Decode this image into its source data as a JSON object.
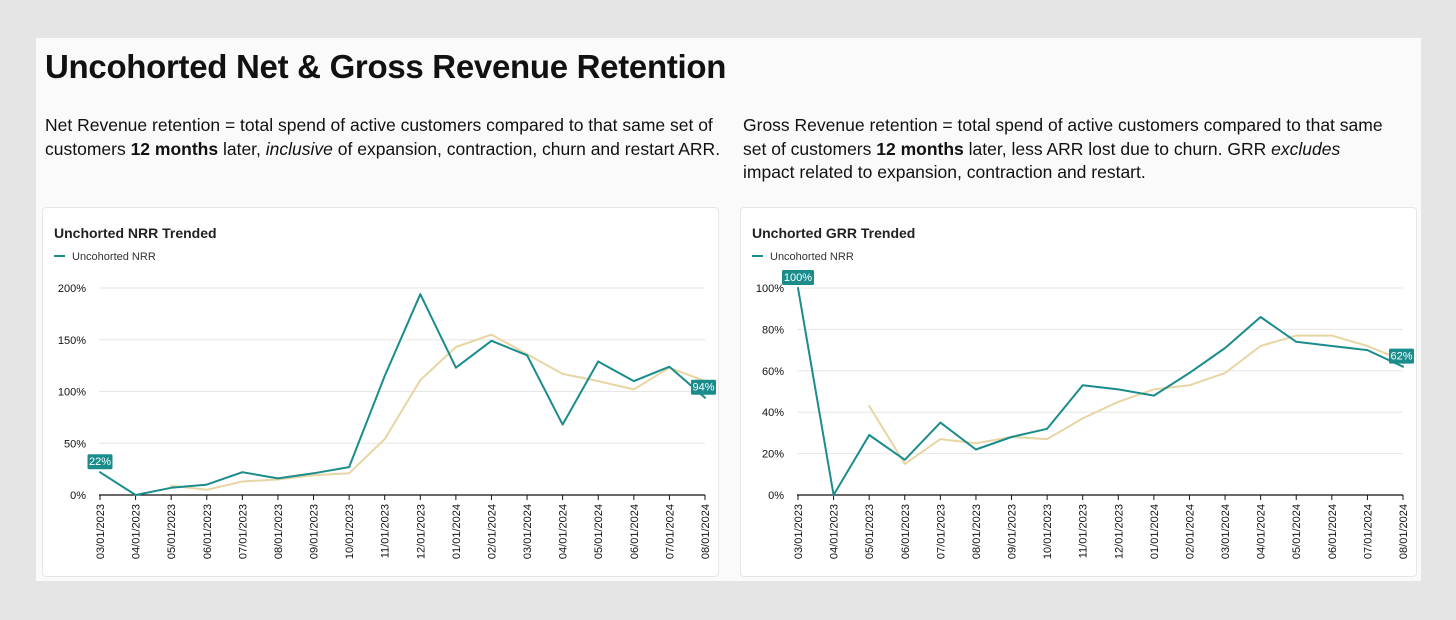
{
  "page": {
    "title": "Uncohorted Net & Gross Revenue Retention",
    "nrr_desc": {
      "p1": "Net Revenue retention = total spend of active customers compared to that same set of customers ",
      "b1": "12 months",
      "p2": " later, ",
      "i1": "inclusive",
      "p3": " of expansion, contraction, churn and restart ARR."
    },
    "grr_desc": {
      "p1": "Gross Revenue retention = total spend of active customers compared to that same set of customers ",
      "b1": "12 months",
      "p2": " later, less ARR lost due to churn. GRR ",
      "i1": "excludes",
      "p3": " impact related to expansion, contraction and restart."
    }
  },
  "colors": {
    "primary": "#1a8c8c",
    "trend": "#e8d5a4",
    "grid": "#e6e6e6",
    "axis": "#111111"
  },
  "chart_data": [
    {
      "type": "line",
      "title": "Unchorted NRR Trended",
      "legend": [
        "Uncohorted NRR"
      ],
      "x": [
        "03/01/2023",
        "04/01/2023",
        "05/01/2023",
        "06/01/2023",
        "07/01/2023",
        "08/01/2023",
        "09/01/2023",
        "10/01/2023",
        "11/01/2023",
        "12/01/2023",
        "01/01/2024",
        "02/01/2024",
        "03/01/2024",
        "04/01/2024",
        "05/01/2024",
        "06/01/2024",
        "07/01/2024",
        "08/01/2024"
      ],
      "ylim": [
        0,
        200
      ],
      "yticks": [
        0,
        50,
        100,
        150,
        200
      ],
      "ytick_labels": [
        "0%",
        "50%",
        "100%",
        "150%",
        "200%"
      ],
      "series": [
        {
          "name": "Uncohorted NRR",
          "values": [
            22,
            0,
            7,
            10,
            22,
            16,
            21,
            27,
            115,
            194,
            123,
            149,
            135,
            68,
            129,
            110,
            124,
            94
          ]
        },
        {
          "values": [
            null,
            null,
            9,
            5,
            13,
            15,
            19,
            21,
            54,
            111,
            143,
            155,
            136,
            117,
            110,
            102,
            123,
            110
          ]
        }
      ],
      "annotations": [
        {
          "index": 0,
          "text": "22%"
        },
        {
          "index": 17,
          "text": "94%"
        }
      ],
      "grid": true
    },
    {
      "type": "line",
      "title": "Unchorted GRR Trended",
      "legend": [
        "Uncohorted NRR"
      ],
      "x": [
        "03/01/2023",
        "04/01/2023",
        "05/01/2023",
        "06/01/2023",
        "07/01/2023",
        "08/01/2023",
        "09/01/2023",
        "10/01/2023",
        "11/01/2023",
        "12/01/2023",
        "01/01/2024",
        "02/01/2024",
        "03/01/2024",
        "04/01/2024",
        "05/01/2024",
        "06/01/2024",
        "07/01/2024",
        "08/01/2024"
      ],
      "ylim": [
        0,
        100
      ],
      "yticks": [
        0,
        20,
        40,
        60,
        80,
        100
      ],
      "ytick_labels": [
        "0%",
        "20%",
        "40%",
        "60%",
        "80%",
        "100%"
      ],
      "series": [
        {
          "name": "Uncohorted NRR",
          "values": [
            100,
            0,
            29,
            17,
            35,
            22,
            28,
            32,
            53,
            51,
            48,
            59,
            71,
            86,
            74,
            72,
            70,
            62
          ]
        },
        {
          "values": [
            null,
            null,
            43,
            15,
            27,
            25,
            28,
            27,
            37,
            45,
            51,
            53,
            59,
            72,
            77,
            77,
            72,
            65
          ]
        }
      ],
      "annotations": [
        {
          "index": 0,
          "text": "100%"
        },
        {
          "index": 17,
          "text": "62%"
        }
      ],
      "grid": true
    }
  ]
}
